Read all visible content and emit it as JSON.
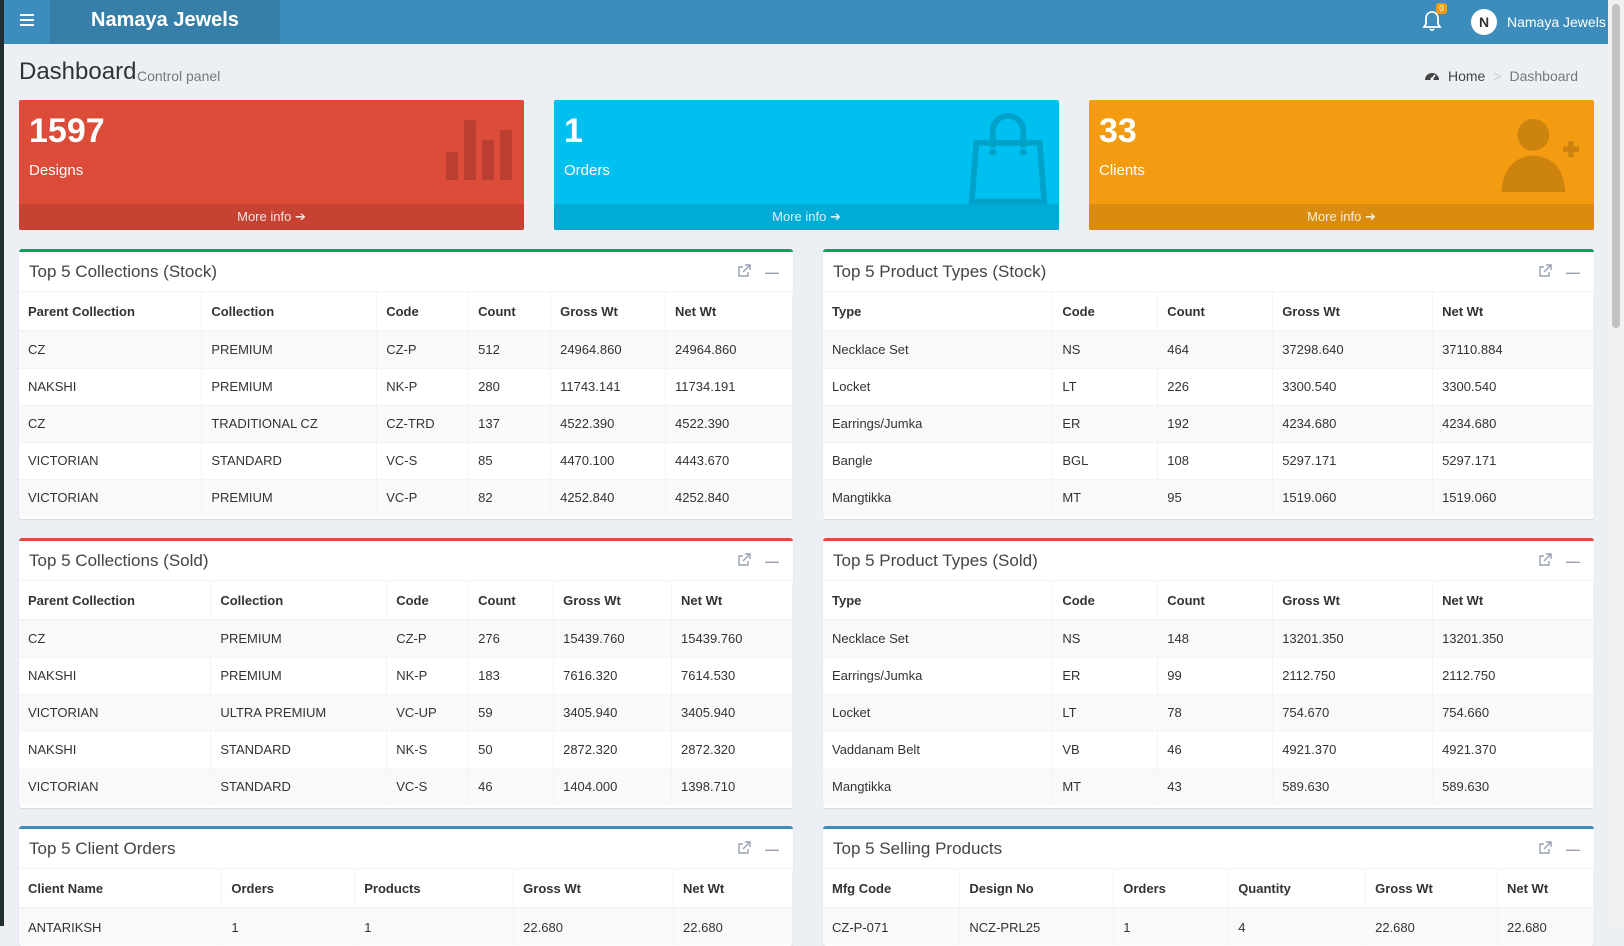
{
  "header": {
    "brand": "Namaya Jewels",
    "menu_icon": "bars-icon",
    "notification_count": "0",
    "user_initial": "N",
    "user_name": "Namaya Jewels"
  },
  "content_header": {
    "title": "Dashboard",
    "subtitle": "Control panel"
  },
  "breadcrumb": {
    "home": "Home",
    "current": "Dashboard"
  },
  "stat_boxes": [
    {
      "value": "1597",
      "label": "Designs",
      "more": "More info",
      "color": "#dd4b39",
      "icon": "bar-chart-icon"
    },
    {
      "value": "1",
      "label": "Orders",
      "more": "More info",
      "color": "#00c0ef",
      "icon": "shopping-bag-icon"
    },
    {
      "value": "33",
      "label": "Clients",
      "more": "More info",
      "color": "#f39c12",
      "icon": "user-plus-icon"
    }
  ],
  "collections_stock": {
    "title": "Top 5 Collections (Stock)",
    "columns": [
      "Parent Collection",
      "Collection",
      "Code",
      "Count",
      "Gross Wt",
      "Net Wt"
    ],
    "rows": [
      [
        "CZ",
        "PREMIUM",
        "CZ-P",
        "512",
        "24964.860",
        "24964.860"
      ],
      [
        "NAKSHI",
        "PREMIUM",
        "NK-P",
        "280",
        "11743.141",
        "11734.191"
      ],
      [
        "CZ",
        "TRADITIONAL CZ",
        "CZ-TRD",
        "137",
        "4522.390",
        "4522.390"
      ],
      [
        "VICTORIAN",
        "STANDARD",
        "VC-S",
        "85",
        "4470.100",
        "4443.670"
      ],
      [
        "VICTORIAN",
        "PREMIUM",
        "VC-P",
        "82",
        "4252.840",
        "4252.840"
      ]
    ]
  },
  "types_stock": {
    "title": "Top 5 Product Types (Stock)",
    "columns": [
      "Type",
      "Code",
      "Count",
      "Gross Wt",
      "Net Wt"
    ],
    "rows": [
      [
        "Necklace Set",
        "NS",
        "464",
        "37298.640",
        "37110.884"
      ],
      [
        "Locket",
        "LT",
        "226",
        "3300.540",
        "3300.540"
      ],
      [
        "Earrings/Jumka",
        "ER",
        "192",
        "4234.680",
        "4234.680"
      ],
      [
        "Bangle",
        "BGL",
        "108",
        "5297.171",
        "5297.171"
      ],
      [
        "Mangtikka",
        "MT",
        "95",
        "1519.060",
        "1519.060"
      ]
    ]
  },
  "collections_sold": {
    "title": "Top 5 Collections (Sold)",
    "columns": [
      "Parent Collection",
      "Collection",
      "Code",
      "Count",
      "Gross Wt",
      "Net Wt"
    ],
    "rows": [
      [
        "CZ",
        "PREMIUM",
        "CZ-P",
        "276",
        "15439.760",
        "15439.760"
      ],
      [
        "NAKSHI",
        "PREMIUM",
        "NK-P",
        "183",
        "7616.320",
        "7614.530"
      ],
      [
        "VICTORIAN",
        "ULTRA PREMIUM",
        "VC-UP",
        "59",
        "3405.940",
        "3405.940"
      ],
      [
        "NAKSHI",
        "STANDARD",
        "NK-S",
        "50",
        "2872.320",
        "2872.320"
      ],
      [
        "VICTORIAN",
        "STANDARD",
        "VC-S",
        "46",
        "1404.000",
        "1398.710"
      ]
    ]
  },
  "types_sold": {
    "title": "Top 5 Product Types (Sold)",
    "columns": [
      "Type",
      "Code",
      "Count",
      "Gross Wt",
      "Net Wt"
    ],
    "rows": [
      [
        "Necklace Set",
        "NS",
        "148",
        "13201.350",
        "13201.350"
      ],
      [
        "Earrings/Jumka",
        "ER",
        "99",
        "2112.750",
        "2112.750"
      ],
      [
        "Locket",
        "LT",
        "78",
        "754.670",
        "754.660"
      ],
      [
        "Vaddanam Belt",
        "VB",
        "46",
        "4921.370",
        "4921.370"
      ],
      [
        "Mangtikka",
        "MT",
        "43",
        "589.630",
        "589.630"
      ]
    ]
  },
  "client_orders": {
    "title": "Top 5 Client Orders",
    "columns": [
      "Client Name",
      "Orders",
      "Products",
      "Gross Wt",
      "Net Wt"
    ],
    "rows": [
      [
        "ANTARIKSH",
        "1",
        "1",
        "22.680",
        "22.680"
      ]
    ]
  },
  "selling_products": {
    "title": "Top 5 Selling Products",
    "columns": [
      "Mfg Code",
      "Design No",
      "Orders",
      "Quantity",
      "Gross Wt",
      "Net Wt"
    ],
    "rows": [
      [
        "CZ-P-071",
        "NCZ-PRL25",
        "1",
        "4",
        "22.680",
        "22.680"
      ]
    ]
  }
}
